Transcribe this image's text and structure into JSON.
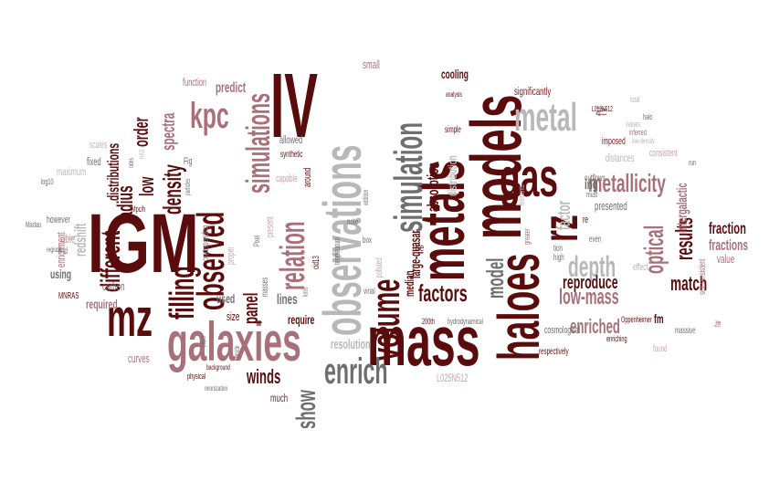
{
  "palette": {
    "dark": "#5a0b0b",
    "red": "#7d1a1a",
    "rose": "#a9707a",
    "pink": "#c9a2a8",
    "gray": "#6e6e6e",
    "lightgray": "#b8b8b8",
    "paper": "#ffffff"
  },
  "words": [
    {
      "text": "IGM",
      "color": "dark"
    },
    {
      "text": "IV",
      "color": "dark"
    },
    {
      "text": "mass",
      "color": "dark"
    },
    {
      "text": "models",
      "color": "dark"
    },
    {
      "text": "metals",
      "color": "dark"
    },
    {
      "text": "observations",
      "color": "lightgray"
    },
    {
      "text": "galaxies",
      "color": "rose"
    },
    {
      "text": "haloes",
      "color": "dark"
    },
    {
      "text": "gas",
      "color": "dark"
    },
    {
      "text": "mz",
      "color": "dark"
    },
    {
      "text": "rz",
      "color": "dark"
    },
    {
      "text": "simulation",
      "color": "gray"
    },
    {
      "text": "volume",
      "color": "dark"
    },
    {
      "text": "metal",
      "color": "lightgray"
    },
    {
      "text": "kpc",
      "color": "rose"
    },
    {
      "text": "observed",
      "color": "dark"
    },
    {
      "text": "simulations",
      "color": "rose"
    },
    {
      "text": "enrich",
      "color": "gray"
    },
    {
      "text": "filling",
      "color": "dark"
    },
    {
      "text": "relation",
      "color": "rose"
    },
    {
      "text": "depth",
      "color": "lightgray"
    },
    {
      "text": "metallicity",
      "color": "rose"
    },
    {
      "text": "different",
      "color": "dark"
    },
    {
      "text": "show",
      "color": "gray"
    },
    {
      "text": "density",
      "color": "dark"
    },
    {
      "text": "optical",
      "color": "rose"
    },
    {
      "text": "results",
      "color": "dark"
    },
    {
      "text": "model",
      "color": "gray"
    },
    {
      "text": "factors",
      "color": "dark"
    },
    {
      "text": "low-mass",
      "color": "rose"
    },
    {
      "text": "enriched",
      "color": "rose"
    },
    {
      "text": "reproduce",
      "color": "dark"
    },
    {
      "text": "match",
      "color": "dark"
    },
    {
      "text": "panel",
      "color": "dark"
    },
    {
      "text": "winds",
      "color": "dark"
    },
    {
      "text": "radius",
      "color": "dark"
    },
    {
      "text": "order",
      "color": "dark"
    },
    {
      "text": "spectra",
      "color": "rose"
    },
    {
      "text": "absorption",
      "color": "dark"
    },
    {
      "text": "distributions",
      "color": "dark"
    },
    {
      "text": "low",
      "color": "dark"
    },
    {
      "text": "factor",
      "color": "lightgray"
    },
    {
      "text": "fraction",
      "color": "dark"
    },
    {
      "text": "fractions",
      "color": "rose"
    },
    {
      "text": "redshift",
      "color": "lightgray"
    },
    {
      "text": "resolution",
      "color": "lightgray"
    },
    {
      "text": "intergalactic",
      "color": "rose"
    },
    {
      "text": "large-quasar",
      "color": "dark"
    },
    {
      "text": "cooling",
      "color": "dark"
    },
    {
      "text": "median",
      "color": "dark"
    },
    {
      "text": "distribution",
      "color": "lightgray"
    },
    {
      "text": "significantly",
      "color": "red"
    },
    {
      "text": "predict",
      "color": "rose"
    },
    {
      "text": "function",
      "color": "rose"
    },
    {
      "text": "small",
      "color": "rose"
    },
    {
      "text": "lines",
      "color": "gray"
    },
    {
      "text": "require",
      "color": "dark"
    },
    {
      "text": "required",
      "color": "rose"
    },
    {
      "text": "used",
      "color": "gray"
    },
    {
      "text": "carbon",
      "color": "gray"
    },
    {
      "text": "using",
      "color": "gray"
    },
    {
      "text": "curves",
      "color": "rose"
    },
    {
      "text": "size",
      "color": "dark"
    },
    {
      "text": "much",
      "color": "red"
    },
    {
      "text": "value",
      "color": "rose"
    },
    {
      "text": "fm",
      "color": "dark"
    },
    {
      "text": "presented",
      "color": "gray"
    },
    {
      "text": "distances",
      "color": "lightgray"
    },
    {
      "text": "consistent",
      "color": "pink"
    },
    {
      "text": "imposed",
      "color": "red"
    },
    {
      "text": "allowed",
      "color": "gray"
    },
    {
      "text": "fixed",
      "color": "gray"
    },
    {
      "text": "maximum",
      "color": "lightgray"
    },
    {
      "text": "scales",
      "color": "lightgray"
    },
    {
      "text": "able",
      "color": "pink"
    },
    {
      "text": "enrichment",
      "color": "rose"
    },
    {
      "text": "however",
      "color": "gray"
    },
    {
      "text": "Madau",
      "color": "gray"
    },
    {
      "text": "log10",
      "color": "gray"
    },
    {
      "text": "find",
      "color": "gray"
    },
    {
      "text": "MNRAS",
      "color": "dark"
    },
    {
      "text": "Fig",
      "color": "gray"
    },
    {
      "text": "Mpc/h",
      "color": "dark"
    },
    {
      "text": "particles",
      "color": "gray"
    },
    {
      "text": "corresponding",
      "color": "gray"
    },
    {
      "text": "proper",
      "color": "pink"
    },
    {
      "text": "present",
      "color": "pink"
    },
    {
      "text": "capable",
      "color": "pink"
    },
    {
      "text": "synthetic",
      "color": "dark"
    },
    {
      "text": "around",
      "color": "dark"
    },
    {
      "text": "Pixel",
      "color": "gray"
    },
    {
      "text": "cid13",
      "color": "dark"
    },
    {
      "text": "km/s",
      "color": "gray"
    },
    {
      "text": "masses",
      "color": "gray"
    },
    {
      "text": "temperature",
      "color": "gray"
    },
    {
      "text": "note",
      "color": "gray"
    },
    {
      "text": "addition",
      "color": "gray"
    },
    {
      "text": "box",
      "color": "gray"
    },
    {
      "text": "polluted",
      "color": "pink"
    },
    {
      "text": "virial",
      "color": "gray"
    },
    {
      "text": "use",
      "color": "dark"
    },
    {
      "text": "200th",
      "color": "dark"
    },
    {
      "text": "hydrodynamical",
      "color": "gray"
    },
    {
      "text": "L025N512",
      "color": "pink"
    },
    {
      "text": "cosmological",
      "color": "gray"
    },
    {
      "text": "respectively",
      "color": "dark"
    },
    {
      "text": "enriching",
      "color": "dark"
    },
    {
      "text": "Oppenheimer",
      "color": "dark"
    },
    {
      "text": "massive",
      "color": "gray"
    },
    {
      "text": "found",
      "color": "pink"
    },
    {
      "text": "self-consistent",
      "color": "rose"
    },
    {
      "text": "far",
      "color": "rose"
    },
    {
      "text": "even",
      "color": "gray"
    },
    {
      "text": "effect",
      "color": "lightgray"
    },
    {
      "text": "high",
      "color": "gray"
    },
    {
      "text": "tion",
      "color": "gray"
    },
    {
      "text": "greater",
      "color": "rose"
    },
    {
      "text": "elements",
      "color": "lightgray"
    },
    {
      "text": "must",
      "color": "gray"
    },
    {
      "text": "re",
      "color": "dark"
    },
    {
      "text": "ing",
      "color": "gray"
    },
    {
      "text": "outflows",
      "color": "gray"
    },
    {
      "text": "run",
      "color": "gray"
    },
    {
      "text": "low-density",
      "color": "lightgray"
    },
    {
      "text": "inferred",
      "color": "rose"
    },
    {
      "text": "values",
      "color": "lightgray"
    },
    {
      "text": "halo",
      "color": "gray"
    },
    {
      "text": "total",
      "color": "lightgray"
    },
    {
      "text": "fV",
      "color": "rose"
    },
    {
      "text": "L012N512",
      "color": "dark"
    },
    {
      "text": "analysis",
      "color": "dark"
    },
    {
      "text": "simple",
      "color": "dark"
    },
    {
      "text": "physical",
      "color": "dark"
    },
    {
      "text": "background",
      "color": "dark"
    },
    {
      "text": "reionization",
      "color": "gray"
    },
    {
      "text": "reside",
      "color": "gray"
    },
    {
      "text": "paper",
      "color": "gray"
    },
    {
      "text": "lower",
      "color": "lightgray"
    },
    {
      "text": "regions",
      "color": "gray"
    },
    {
      "text": "rates",
      "color": "gray"
    },
    {
      "text": "HAS",
      "color": "lightgray"
    }
  ]
}
